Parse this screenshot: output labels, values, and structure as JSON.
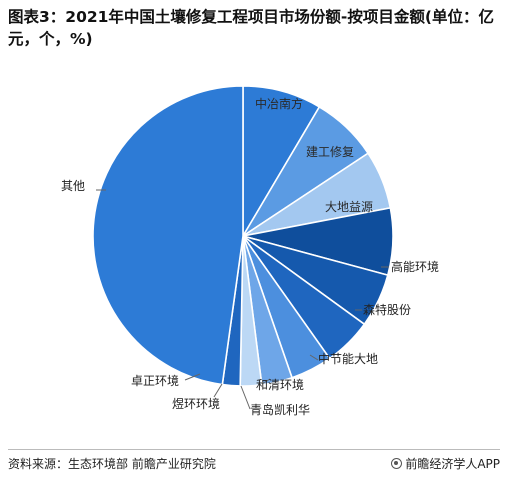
{
  "chart_data": {
    "type": "pie",
    "title": "图表3：2021年中国土壤修复工程项目市场份额-按项目金额(单位：亿元，个，%)",
    "categories": [
      "中冶南方",
      "建工修复",
      "大地益源",
      "高能环境",
      "森特股份",
      "中节能大地",
      "和清环境",
      "青岛凯利华",
      "煜环环境",
      "卓正环境",
      "其他"
    ],
    "values": [
      8.5,
      7.2,
      6.3,
      7.2,
      5.8,
      5.2,
      4.5,
      3.3,
      2.3,
      1.9,
      47.8
    ],
    "colors": [
      "#2d7bd6",
      "#5b9be3",
      "#a3c8f0",
      "#0f4e9c",
      "#1559ad",
      "#1f66bf",
      "#4c8fde",
      "#6ea6e8",
      "#bcd8f5",
      "#1f66bf",
      "#2d7bd6"
    ]
  },
  "footer": {
    "source": "资料来源：生态环境部 前瞻产业研究院",
    "brand": "前瞻经济学人APP"
  }
}
